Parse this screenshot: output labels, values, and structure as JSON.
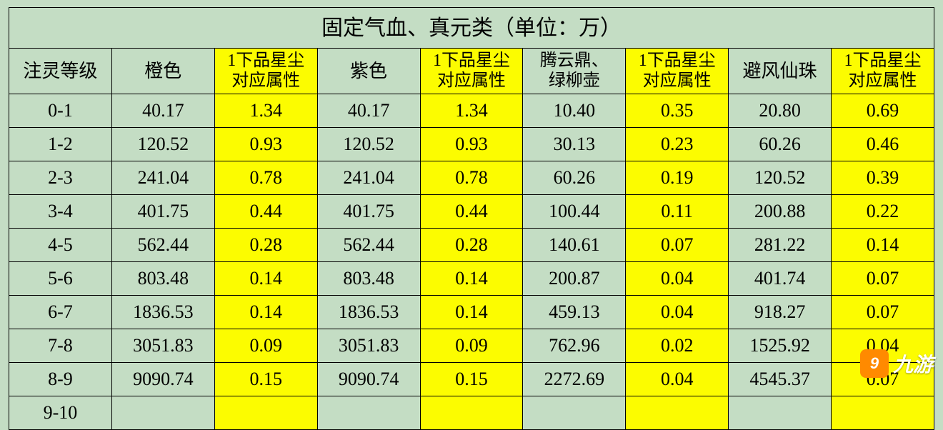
{
  "table": {
    "title": "固定气血、真元类（单位：万）",
    "background_color": "#c4ddc4",
    "highlight_color": "#fcfc00",
    "border_color": "#000000",
    "font_family": "SimSun",
    "title_fontsize": 30,
    "header_fontsize": 26,
    "cell_fontsize": 26,
    "columns": [
      {
        "label": "注灵等级",
        "highlight": false
      },
      {
        "label": "橙色",
        "highlight": false
      },
      {
        "label": "1下品星尘对应属性",
        "highlight": true,
        "multiline": true
      },
      {
        "label": "紫色",
        "highlight": false
      },
      {
        "label": "1下品星尘对应属性",
        "highlight": true,
        "multiline": true
      },
      {
        "label": "腾云鼎、绿柳壶",
        "highlight": false,
        "multiline": true
      },
      {
        "label": "1下品星尘对应属性",
        "highlight": true,
        "multiline": true
      },
      {
        "label": "避风仙珠",
        "highlight": false
      },
      {
        "label": "1下品星尘对应属性",
        "highlight": true,
        "multiline": true
      }
    ],
    "highlight_cols": [
      false,
      false,
      true,
      false,
      true,
      false,
      true,
      false,
      true
    ],
    "rows": [
      {
        "level": "0-1",
        "cells": [
          "40.17",
          "1.34",
          "40.17",
          "1.34",
          "10.40",
          "0.35",
          "20.80",
          "0.69"
        ]
      },
      {
        "level": "1-2",
        "cells": [
          "120.52",
          "0.93",
          "120.52",
          "0.93",
          "30.13",
          "0.23",
          "60.26",
          "0.46"
        ]
      },
      {
        "level": "2-3",
        "cells": [
          "241.04",
          "0.78",
          "241.04",
          "0.78",
          "60.26",
          "0.19",
          "120.52",
          "0.39"
        ]
      },
      {
        "level": "3-4",
        "cells": [
          "401.75",
          "0.44",
          "401.75",
          "0.44",
          "100.44",
          "0.11",
          "200.88",
          "0.22"
        ]
      },
      {
        "level": "4-5",
        "cells": [
          "562.44",
          "0.28",
          "562.44",
          "0.28",
          "140.61",
          "0.07",
          "281.22",
          "0.14"
        ]
      },
      {
        "level": "5-6",
        "cells": [
          "803.48",
          "0.14",
          "803.48",
          "0.14",
          "200.87",
          "0.04",
          "401.74",
          "0.07"
        ]
      },
      {
        "level": "6-7",
        "cells": [
          "1836.53",
          "0.14",
          "1836.53",
          "0.14",
          "459.13",
          "0.04",
          "918.27",
          "0.07"
        ]
      },
      {
        "level": "7-8",
        "cells": [
          "3051.83",
          "0.09",
          "3051.83",
          "0.09",
          "762.96",
          "0.02",
          "1525.92",
          "0.04"
        ]
      },
      {
        "level": "8-9",
        "cells": [
          "9090.74",
          "0.15",
          "9090.74",
          "0.15",
          "2272.69",
          "0.04",
          "4545.37",
          "0.07"
        ]
      },
      {
        "level": "9-10",
        "cells": [
          "",
          "",
          "",
          "",
          "",
          "",
          "",
          ""
        ]
      }
    ]
  },
  "watermark": {
    "badge_text": "9",
    "text": "九游",
    "badge_color": "#ff8a00",
    "text_color": "#ffffff"
  }
}
